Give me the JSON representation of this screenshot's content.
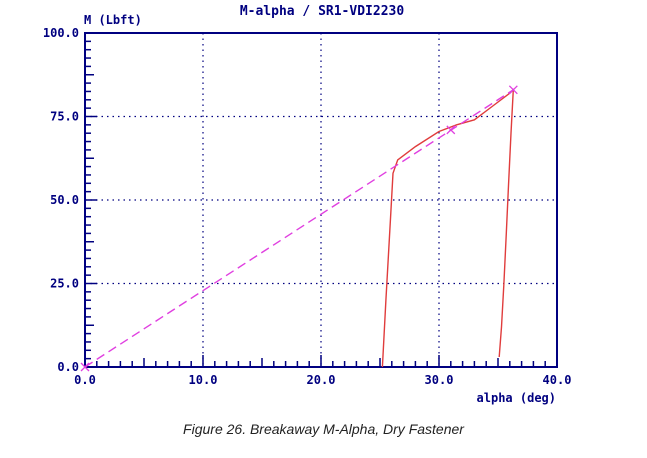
{
  "chart_data": {
    "type": "line",
    "title": "M-alpha / SR1-VDI2230",
    "ylabel": "M (Lbft)",
    "xlabel": "alpha (deg)",
    "xlim": [
      0,
      40
    ],
    "ylim": [
      0,
      100
    ],
    "x_ticks": [
      "0.0",
      "10.0",
      "20.0",
      "30.0",
      "40.0"
    ],
    "y_ticks": [
      "0.0",
      "25.0",
      "50.0",
      "75.0",
      "100.0"
    ],
    "grid": true,
    "colors": {
      "axes": "#000080",
      "grid": "#000080",
      "series_measured": "#e03c3c",
      "series_fit": "#e040e0"
    },
    "series": [
      {
        "style": "solid",
        "color": "#e03c3c",
        "x": [
          25.2,
          25.5,
          25.9,
          26.1,
          26.5,
          28,
          30,
          31.5,
          33,
          34.5,
          36,
          36.3,
          36.1,
          35.9,
          35.7,
          35.5,
          35.3,
          35.1
        ],
        "y": [
          0,
          20,
          45,
          58,
          62,
          66,
          70.5,
          72.5,
          74,
          78,
          82,
          83,
          70,
          55,
          40,
          25,
          12,
          3
        ]
      },
      {
        "style": "dashed",
        "color": "#e040e0",
        "x": [
          0,
          36.3
        ],
        "y": [
          0,
          83
        ]
      }
    ],
    "markers": [
      {
        "x": 0,
        "y": 0
      },
      {
        "x": 31,
        "y": 71
      },
      {
        "x": 36.3,
        "y": 83
      }
    ]
  },
  "caption": "Figure 26. Breakaway M-Alpha, Dry Fastener"
}
